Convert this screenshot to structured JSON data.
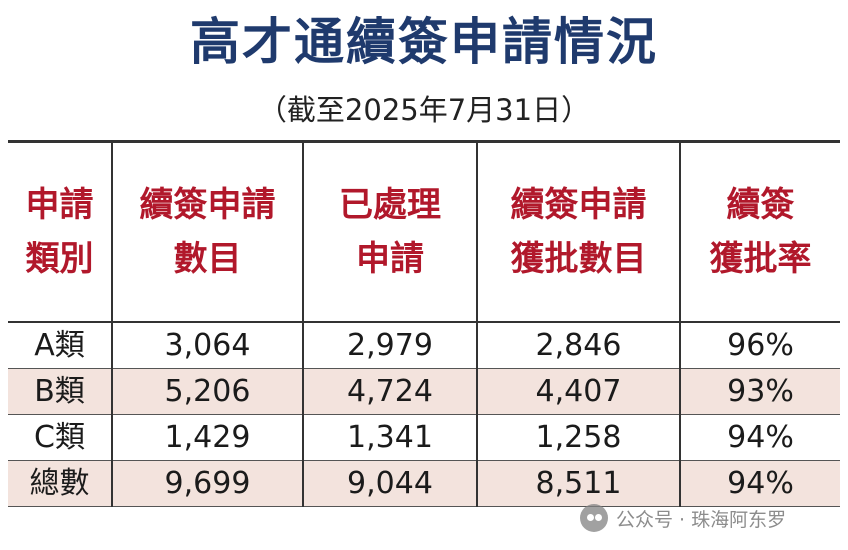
{
  "title": "高才通續簽申請情況",
  "subtitle": "（截至2025年7月31日）",
  "table": {
    "headers": [
      "申請\n類別",
      "續簽申請\n數目",
      "已處理\n申請",
      "續簽申請\n獲批數目",
      "續簽\n獲批率"
    ],
    "rows": [
      [
        "A類",
        "3,064",
        "2,979",
        "2,846",
        "96%"
      ],
      [
        "B類",
        "5,206",
        "4,724",
        "4,407",
        "93%"
      ],
      [
        "C類",
        "1,429",
        "1,341",
        "1,258",
        "94%"
      ],
      [
        "總數",
        "9,699",
        "9,044",
        "8,511",
        "94%"
      ]
    ]
  },
  "colors": {
    "title": "#1f3a6d",
    "header_text": "#b1182b",
    "shaded_row": "#f3e3dd"
  },
  "watermark": {
    "icon": "wechat-icon",
    "text": "公众号 · 珠海阿东罗"
  }
}
